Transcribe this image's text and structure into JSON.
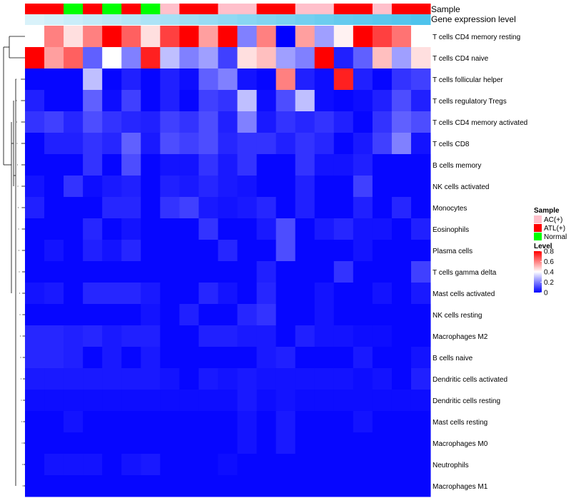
{
  "chart_data": {
    "type": "heatmap",
    "annotation_labels": [
      "Sample",
      "Gene expression level"
    ],
    "sample_annotation": [
      "ATL(+)",
      "ATL(+)",
      "Normal",
      "ATL(+)",
      "Normal",
      "ATL(+)",
      "Normal",
      "AC(+)",
      "ATL(+)",
      "ATL(+)",
      "AC(+)",
      "AC(+)",
      "ATL(+)",
      "ATL(+)",
      "AC(+)",
      "AC(+)",
      "ATL(+)",
      "ATL(+)",
      "AC(+)",
      "ATL(+)",
      "ATL(+)"
    ],
    "expression_level": [
      0.05,
      0.1,
      0.15,
      0.2,
      0.25,
      0.3,
      0.35,
      0.4,
      0.45,
      0.5,
      0.55,
      0.6,
      0.65,
      0.7,
      0.75,
      0.8,
      0.85,
      0.88,
      0.92,
      0.96,
      1.0
    ],
    "rows": [
      "T cells CD4 memory resting",
      "T cells CD4 naive",
      "T cells follicular helper",
      "T cells regulatory  Tregs",
      "T cells CD4 memory activated",
      "T cells CD8",
      "B cells memory",
      "NK cells activated",
      "Monocytes",
      "Eosinophils",
      "Plasma cells",
      "T cells gamma delta",
      "Mast cells activated",
      "NK cells resting",
      "Macrophages M2",
      "B cells naive",
      "Dendritic cells activated",
      "Dendritic cells resting",
      "Mast cells resting",
      "Macrophages M0",
      "Neutrophils",
      "Macrophages M1"
    ],
    "values": [
      [
        0.4,
        0.6,
        0.45,
        0.6,
        0.8,
        0.65,
        0.45,
        0.7,
        0.8,
        0.55,
        0.8,
        0.2,
        0.6,
        0.0,
        0.55,
        0.25,
        0.42,
        0.8,
        0.7,
        0.62,
        0.4
      ],
      [
        0.8,
        0.55,
        0.65,
        0.15,
        0.4,
        0.2,
        0.75,
        0.3,
        0.2,
        0.25,
        0.1,
        0.45,
        0.5,
        0.25,
        0.2,
        0.8,
        0.05,
        0.15,
        0.5,
        0.25,
        0.45
      ],
      [
        0.01,
        0.01,
        0.01,
        0.3,
        0.01,
        0.05,
        0.01,
        0.05,
        0.02,
        0.15,
        0.2,
        0.03,
        0.01,
        0.6,
        0.05,
        0.02,
        0.75,
        0.05,
        0.01,
        0.08,
        0.1
      ],
      [
        0.05,
        0.01,
        0.01,
        0.15,
        0.02,
        0.1,
        0.01,
        0.05,
        0.01,
        0.1,
        0.08,
        0.3,
        0.02,
        0.12,
        0.3,
        0.02,
        0.01,
        0.02,
        0.05,
        0.12,
        0.05
      ],
      [
        0.08,
        0.1,
        0.06,
        0.12,
        0.08,
        0.06,
        0.05,
        0.1,
        0.08,
        0.12,
        0.05,
        0.2,
        0.04,
        0.08,
        0.06,
        0.08,
        0.05,
        0.01,
        0.08,
        0.15,
        0.12
      ],
      [
        0.01,
        0.05,
        0.05,
        0.08,
        0.06,
        0.15,
        0.04,
        0.12,
        0.1,
        0.12,
        0.06,
        0.08,
        0.08,
        0.05,
        0.08,
        0.06,
        0.01,
        0.04,
        0.1,
        0.2,
        0.03
      ],
      [
        0.01,
        0.01,
        0.01,
        0.08,
        0.01,
        0.12,
        0.01,
        0.03,
        0.03,
        0.08,
        0.04,
        0.08,
        0.01,
        0.01,
        0.08,
        0.03,
        0.03,
        0.05,
        0.01,
        0.01,
        0.01
      ],
      [
        0.03,
        0.01,
        0.08,
        0.02,
        0.04,
        0.05,
        0.01,
        0.05,
        0.04,
        0.06,
        0.04,
        0.03,
        0.01,
        0.01,
        0.05,
        0.01,
        0.01,
        0.1,
        0.01,
        0.01,
        0.01
      ],
      [
        0.05,
        0.01,
        0.01,
        0.01,
        0.06,
        0.06,
        0.01,
        0.08,
        0.1,
        0.04,
        0.03,
        0.04,
        0.06,
        0.01,
        0.05,
        0.01,
        0.01,
        0.05,
        0.01,
        0.06,
        0.01
      ],
      [
        0.01,
        0.01,
        0.01,
        0.06,
        0.01,
        0.03,
        0.01,
        0.01,
        0.01,
        0.08,
        0.01,
        0.01,
        0.04,
        0.12,
        0.01,
        0.04,
        0.06,
        0.03,
        0.03,
        0.01,
        0.05
      ],
      [
        0.01,
        0.03,
        0.01,
        0.05,
        0.03,
        0.06,
        0.01,
        0.01,
        0.01,
        0.01,
        0.06,
        0.01,
        0.01,
        0.12,
        0.01,
        0.01,
        0.01,
        0.03,
        0.01,
        0.01,
        0.01
      ],
      [
        0.01,
        0.01,
        0.01,
        0.01,
        0.01,
        0.01,
        0.01,
        0.01,
        0.01,
        0.01,
        0.01,
        0.01,
        0.05,
        0.01,
        0.01,
        0.01,
        0.08,
        0.01,
        0.01,
        0.01,
        0.1
      ],
      [
        0.03,
        0.04,
        0.01,
        0.06,
        0.06,
        0.06,
        0.04,
        0.01,
        0.01,
        0.06,
        0.03,
        0.01,
        0.06,
        0.01,
        0.01,
        0.03,
        0.01,
        0.01,
        0.03,
        0.01,
        0.04
      ],
      [
        0.01,
        0.01,
        0.01,
        0.01,
        0.01,
        0.01,
        0.03,
        0.01,
        0.05,
        0.01,
        0.01,
        0.06,
        0.08,
        0.01,
        0.01,
        0.03,
        0.01,
        0.01,
        0.01,
        0.01,
        0.01
      ],
      [
        0.06,
        0.06,
        0.05,
        0.06,
        0.04,
        0.05,
        0.05,
        0.01,
        0.01,
        0.05,
        0.05,
        0.04,
        0.04,
        0.01,
        0.05,
        0.03,
        0.03,
        0.02,
        0.02,
        0.01,
        0.01
      ],
      [
        0.06,
        0.06,
        0.05,
        0.01,
        0.04,
        0.01,
        0.04,
        0.01,
        0.01,
        0.01,
        0.01,
        0.01,
        0.04,
        0.05,
        0.01,
        0.01,
        0.01,
        0.04,
        0.01,
        0.01,
        0.03
      ],
      [
        0.04,
        0.04,
        0.04,
        0.04,
        0.04,
        0.04,
        0.04,
        0.03,
        0.01,
        0.04,
        0.03,
        0.04,
        0.03,
        0.03,
        0.03,
        0.03,
        0.03,
        0.02,
        0.03,
        0.01,
        0.05
      ],
      [
        0.02,
        0.02,
        0.02,
        0.02,
        0.02,
        0.02,
        0.02,
        0.02,
        0.02,
        0.02,
        0.02,
        0.04,
        0.02,
        0.03,
        0.02,
        0.02,
        0.02,
        0.02,
        0.02,
        0.02,
        0.02
      ],
      [
        0.01,
        0.01,
        0.03,
        0.01,
        0.01,
        0.01,
        0.01,
        0.01,
        0.01,
        0.01,
        0.01,
        0.03,
        0.01,
        0.04,
        0.01,
        0.01,
        0.01,
        0.03,
        0.01,
        0.01,
        0.01
      ],
      [
        0.01,
        0.01,
        0.01,
        0.01,
        0.01,
        0.01,
        0.01,
        0.01,
        0.01,
        0.01,
        0.01,
        0.03,
        0.01,
        0.04,
        0.01,
        0.01,
        0.01,
        0.01,
        0.01,
        0.01,
        0.01
      ],
      [
        0.01,
        0.03,
        0.03,
        0.03,
        0.01,
        0.03,
        0.04,
        0.01,
        0.01,
        0.01,
        0.02,
        0.01,
        0.01,
        0.01,
        0.01,
        0.01,
        0.01,
        0.01,
        0.01,
        0.01,
        0.01
      ],
      [
        0.01,
        0.01,
        0.01,
        0.01,
        0.01,
        0.01,
        0.01,
        0.01,
        0.01,
        0.01,
        0.01,
        0.01,
        0.01,
        0.01,
        0.01,
        0.01,
        0.01,
        0.01,
        0.01,
        0.01,
        0.01
      ]
    ],
    "legend_sample": {
      "title": "Sample",
      "items": [
        {
          "label": "AC(+)",
          "color": "#ffc0cb"
        },
        {
          "label": "ATL(+)",
          "color": "#ff0000"
        },
        {
          "label": "Normal",
          "color": "#00ff00"
        }
      ]
    },
    "legend_level": {
      "title": "Level",
      "ticks": [
        "0.8",
        "0.6",
        "0.4",
        "0.2",
        "0"
      ],
      "range": [
        0,
        0.8
      ],
      "colors": [
        "#0000ff",
        "#ffffff",
        "#ff0000"
      ]
    },
    "dendrogram": "rows",
    "expression_colors": [
      "#e0f4fb",
      "#4fc3ec"
    ]
  }
}
